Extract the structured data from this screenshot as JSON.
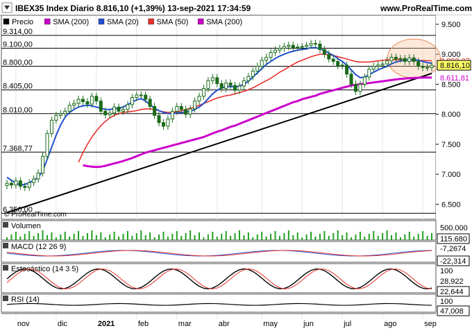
{
  "header": {
    "title": "IBEX35 Index Diario 8.816,10 (+1,39%) 13-sep-2021 17:34:59",
    "website": "www.ProRealTime.com"
  },
  "watermark": "© ProRealTime.com",
  "chart_data": {
    "type": "line",
    "x_labels": [
      "nov",
      "dic",
      "2021",
      "feb",
      "mar",
      "abr",
      "may",
      "jun",
      "jul",
      "ago",
      "sep"
    ],
    "main": {
      "legend": [
        {
          "label": "Precio",
          "color": "#000000"
        },
        {
          "label": "SMA (200)",
          "color": "#cc00cc"
        },
        {
          "label": "SMA (20)",
          "color": "#1f4fd1"
        },
        {
          "label": "SMA (50)",
          "color": "#e8302a"
        },
        {
          "label": "SMA (200)",
          "color": "#cc00cc"
        }
      ],
      "ylim": [
        6250,
        9650
      ],
      "y_ticks": [
        9500,
        9000,
        8500,
        8000,
        7500,
        7000,
        6500
      ],
      "y_tick_labels": [
        "9.500",
        "9.000",
        "8.500",
        "8.000",
        "7.500",
        "7.000",
        "6.500"
      ],
      "levels": [
        {
          "value": 9314,
          "label": "9.314,00"
        },
        {
          "value": 9100,
          "label": "9.100,00"
        },
        {
          "value": 8800,
          "label": "8.800,00"
        },
        {
          "value": 8405,
          "label": "8.405,00"
        },
        {
          "value": 8010,
          "label": "8.010,00"
        },
        {
          "value": 7368.77,
          "label": "7.368,77"
        },
        {
          "value": 6350,
          "label": "6.350,00"
        }
      ],
      "right_labels": [
        {
          "value": 8892.07,
          "label": "8.892,07",
          "color": "#e8302a",
          "boxed": false
        },
        {
          "value": 8816.1,
          "label": "8.816,10",
          "color": "#000000",
          "boxed": true
        },
        {
          "value": 8611.81,
          "label": "8.611,81",
          "color": "#cc00cc",
          "boxed": false
        }
      ],
      "price_close": [
        6850,
        6820,
        6890,
        6800,
        6780,
        6860,
        6920,
        7020,
        7300,
        7680,
        7900,
        7980,
        8010,
        8050,
        8150,
        8180,
        8250,
        8210,
        8170,
        8300,
        8220,
        8050,
        7990,
        8020,
        8120,
        8050,
        8080,
        8160,
        8280,
        8320,
        8320,
        8250,
        8130,
        7980,
        7860,
        7800,
        7920,
        8050,
        8130,
        8080,
        8000,
        8090,
        8220,
        8300,
        8430,
        8560,
        8610,
        8510,
        8430,
        8520,
        8480,
        8400,
        8470,
        8560,
        8630,
        8720,
        8800,
        8900,
        8950,
        9030,
        9070,
        9100,
        9130,
        9150,
        9110,
        9120,
        9130,
        9150,
        9180,
        9170,
        9080,
        9000,
        8920,
        8880,
        8810,
        8820,
        8670,
        8500,
        8380,
        8500,
        8620,
        8750,
        8800,
        8820,
        8840,
        8890,
        8950,
        8920,
        8930,
        8880,
        8940,
        8880,
        8800,
        8780,
        8780,
        8816
      ],
      "sma20": [
        6950,
        6900,
        6850,
        6820,
        6830,
        6860,
        6900,
        6950,
        7050,
        7250,
        7450,
        7650,
        7820,
        7950,
        8030,
        8080,
        8120,
        8140,
        8150,
        8140,
        8120,
        8100,
        8080,
        8080,
        8090,
        8100,
        8120,
        8160,
        8200,
        8240,
        8260,
        8220,
        8160,
        8100,
        8060,
        8030,
        8010,
        8010,
        8020,
        8030,
        8040,
        8050,
        8080,
        8120,
        8180,
        8260,
        8340,
        8400,
        8440,
        8460,
        8460,
        8460,
        8470,
        8500,
        8550,
        8620,
        8690,
        8760,
        8830,
        8880,
        8930,
        8970,
        9000,
        9030,
        9050,
        9070,
        9080,
        9090,
        9110,
        9110,
        9090,
        9060,
        9020,
        8980,
        8930,
        8880,
        8820,
        8740,
        8660,
        8610,
        8620,
        8660,
        8700,
        8740,
        8770,
        8800,
        8840,
        8870,
        8890,
        8900,
        8910,
        8910,
        8900,
        8880,
        8860,
        8850
      ],
      "sma50": [
        null,
        null,
        null,
        null,
        null,
        null,
        null,
        null,
        null,
        null,
        null,
        null,
        null,
        null,
        null,
        null,
        7200,
        7360,
        7500,
        7620,
        7720,
        7810,
        7880,
        7940,
        7980,
        8010,
        8030,
        8040,
        8050,
        8060,
        8080,
        8090,
        8090,
        8080,
        8060,
        8040,
        8030,
        8030,
        8040,
        8060,
        8080,
        8100,
        8120,
        8150,
        8180,
        8210,
        8240,
        8270,
        8290,
        8310,
        8320,
        8340,
        8360,
        8380,
        8410,
        8440,
        8480,
        8520,
        8560,
        8600,
        8650,
        8700,
        8740,
        8790,
        8830,
        8870,
        8900,
        8930,
        8960,
        8980,
        9000,
        9000,
        8990,
        8980,
        8960,
        8940,
        8920,
        8900,
        8880,
        8870,
        8870,
        8870,
        8880,
        8890,
        8900,
        8910,
        8910,
        8910,
        8910,
        8905,
        8900,
        8900,
        8898,
        8895,
        8893,
        8892
      ],
      "sma200": [
        null,
        null,
        null,
        null,
        null,
        null,
        null,
        null,
        null,
        null,
        null,
        null,
        null,
        null,
        null,
        null,
        null,
        7150,
        7135,
        7125,
        7120,
        7125,
        7140,
        7160,
        7180,
        7200,
        7220,
        7245,
        7270,
        7300,
        7330,
        7360,
        7380,
        7400,
        7420,
        7440,
        7460,
        7480,
        7500,
        7520,
        7540,
        7560,
        7580,
        7600,
        7620,
        7650,
        7680,
        7710,
        7730,
        7760,
        7790,
        7810,
        7840,
        7870,
        7900,
        7930,
        7960,
        7990,
        8020,
        8050,
        8080,
        8110,
        8140,
        8170,
        8200,
        8220,
        8250,
        8270,
        8290,
        8310,
        8340,
        8360,
        8380,
        8400,
        8420,
        8440,
        8460,
        8480,
        8490,
        8500,
        8510,
        8520,
        8530,
        8540,
        8550,
        8560,
        8570,
        8580,
        8590,
        8595,
        8600,
        8605,
        8608,
        8610,
        8611,
        8612
      ],
      "trendline": [
        [
          0,
          6360
        ],
        [
          95,
          8680
        ]
      ],
      "highlight_window": [
        86,
        96
      ]
    },
    "panels": [
      {
        "name": "Volumen",
        "right_labels": [
          {
            "label": "500.000",
            "boxed": false
          },
          {
            "label": "115.680",
            "boxed": true
          }
        ]
      },
      {
        "name": "MACD (12 26 9)",
        "right_labels": [
          {
            "label": "-7,2674",
            "boxed": false
          },
          {
            "label": "-22,314",
            "boxed": true
          }
        ]
      },
      {
        "name": "Estocástico (14 3 5)",
        "right_labels": [
          {
            "label": "100",
            "boxed": false
          },
          {
            "label": "28,922",
            "boxed": false
          },
          {
            "label": "22,644",
            "boxed": true
          }
        ]
      },
      {
        "name": "RSI (14)",
        "right_labels": [
          {
            "label": "100",
            "boxed": false
          },
          {
            "label": "47,008",
            "boxed": true
          }
        ]
      }
    ]
  }
}
